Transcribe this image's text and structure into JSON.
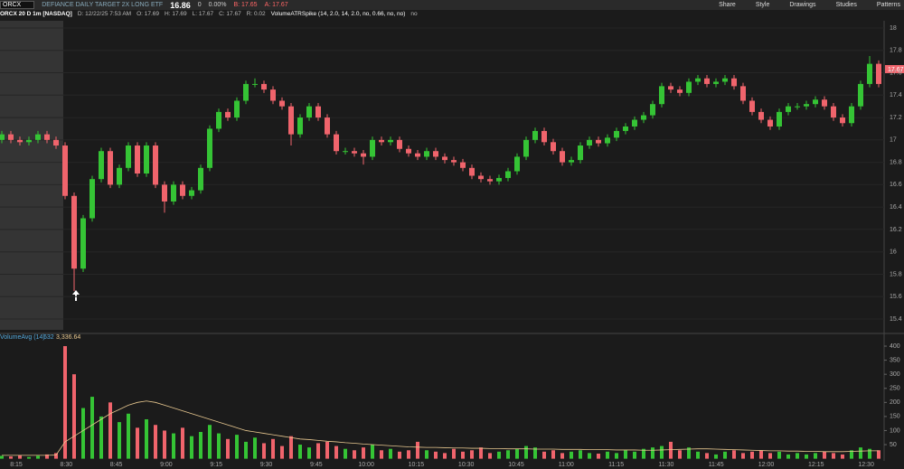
{
  "toolbar": {
    "symbol": "ORCX",
    "description": "DEFIANCE DAILY TARGET 2X LONG ETF",
    "last": "16.86",
    "change": "0",
    "change_pct": "0.00%",
    "bid": "B: 17.65",
    "ask": "A: 17.67",
    "buttons": [
      "Share",
      "Style",
      "Drawings",
      "Studies",
      "Patterns"
    ]
  },
  "legend": {
    "instrument": "ORCX 20 D 1m [NASDAQ]",
    "fields": [
      "D: 12/22/25 7:53 AM",
      "O: 17.69",
      "H: 17.69",
      "L: 17.67",
      "C: 17.67",
      "R: 0.02"
    ],
    "study": "VolumeATRSpike (14, 2.0, 14, 2.0, no, 0.66, no, no)",
    "study_flag": "no",
    "price_tag": "17.67"
  },
  "chart_data": [
    {
      "type": "candlestick",
      "up_color": "#35c435",
      "down_color": "#f0646c",
      "ylim": [
        15.3,
        18.1
      ],
      "yticks": [
        15.4,
        15.6,
        15.8,
        16,
        16.2,
        16.4,
        16.6,
        16.8,
        17,
        17.2,
        17.4,
        17.6,
        17.8,
        18
      ],
      "candles": [
        [
          17.0,
          17.08,
          16.97,
          17.05
        ],
        [
          17.05,
          17.08,
          16.97,
          17.0
        ],
        [
          17.0,
          17.03,
          16.95,
          16.98
        ],
        [
          16.98,
          17.03,
          16.95,
          17.0
        ],
        [
          17.0,
          17.08,
          16.97,
          17.05
        ],
        [
          17.05,
          17.08,
          16.97,
          17.0
        ],
        [
          17.0,
          17.03,
          16.92,
          16.95
        ],
        [
          16.95,
          16.98,
          16.47,
          16.5
        ],
        [
          16.5,
          16.53,
          15.65,
          15.85
        ],
        [
          15.85,
          16.33,
          15.82,
          16.3
        ],
        [
          16.3,
          16.68,
          16.27,
          16.65
        ],
        [
          16.65,
          16.93,
          16.62,
          16.9
        ],
        [
          16.9,
          16.93,
          16.57,
          16.6
        ],
        [
          16.6,
          16.78,
          16.57,
          16.75
        ],
        [
          16.75,
          16.98,
          16.72,
          16.95
        ],
        [
          16.95,
          16.98,
          16.67,
          16.7
        ],
        [
          16.7,
          16.98,
          16.67,
          16.95
        ],
        [
          16.95,
          16.98,
          16.57,
          16.6
        ],
        [
          16.6,
          16.63,
          16.35,
          16.45
        ],
        [
          16.45,
          16.63,
          16.42,
          16.6
        ],
        [
          16.6,
          16.63,
          16.47,
          16.5
        ],
        [
          16.5,
          16.58,
          16.47,
          16.55
        ],
        [
          16.55,
          16.78,
          16.52,
          16.75
        ],
        [
          16.75,
          17.13,
          16.72,
          17.1
        ],
        [
          17.1,
          17.28,
          17.07,
          17.25
        ],
        [
          17.25,
          17.28,
          17.17,
          17.2
        ],
        [
          17.2,
          17.38,
          17.17,
          17.35
        ],
        [
          17.35,
          17.53,
          17.32,
          17.5
        ],
        [
          17.5,
          17.55,
          17.47,
          17.5
        ],
        [
          17.5,
          17.53,
          17.42,
          17.45
        ],
        [
          17.45,
          17.48,
          17.32,
          17.35
        ],
        [
          17.35,
          17.38,
          17.27,
          17.3
        ],
        [
          17.3,
          17.33,
          16.95,
          17.05
        ],
        [
          17.05,
          17.23,
          17.02,
          17.2
        ],
        [
          17.2,
          17.33,
          17.17,
          17.3
        ],
        [
          17.3,
          17.33,
          17.17,
          17.2
        ],
        [
          17.2,
          17.23,
          17.02,
          17.05
        ],
        [
          17.05,
          17.08,
          16.87,
          16.9
        ],
        [
          16.9,
          16.93,
          16.87,
          16.9
        ],
        [
          16.9,
          16.93,
          16.85,
          16.88
        ],
        [
          16.88,
          16.91,
          16.78,
          16.85
        ],
        [
          16.85,
          17.03,
          16.82,
          17.0
        ],
        [
          17.0,
          17.03,
          16.95,
          16.98
        ],
        [
          16.98,
          17.03,
          16.95,
          17.0
        ],
        [
          17.0,
          17.03,
          16.89,
          16.92
        ],
        [
          16.92,
          16.95,
          16.85,
          16.88
        ],
        [
          16.88,
          16.91,
          16.82,
          16.85
        ],
        [
          16.85,
          16.93,
          16.82,
          16.9
        ],
        [
          16.9,
          16.93,
          16.82,
          16.85
        ],
        [
          16.85,
          16.88,
          16.79,
          16.82
        ],
        [
          16.82,
          16.85,
          16.77,
          16.8
        ],
        [
          16.8,
          16.83,
          16.72,
          16.75
        ],
        [
          16.75,
          16.78,
          16.65,
          16.68
        ],
        [
          16.68,
          16.71,
          16.62,
          16.65
        ],
        [
          16.65,
          16.68,
          16.6,
          16.63
        ],
        [
          16.63,
          16.69,
          16.6,
          16.66
        ],
        [
          16.66,
          16.75,
          16.63,
          16.72
        ],
        [
          16.72,
          16.88,
          16.69,
          16.85
        ],
        [
          16.85,
          17.03,
          16.82,
          17.0
        ],
        [
          17.0,
          17.11,
          16.97,
          17.08
        ],
        [
          17.08,
          17.11,
          16.95,
          16.98
        ],
        [
          16.98,
          17.01,
          16.87,
          16.9
        ],
        [
          16.9,
          16.93,
          16.77,
          16.8
        ],
        [
          16.8,
          16.85,
          16.77,
          16.82
        ],
        [
          16.82,
          16.98,
          16.79,
          16.95
        ],
        [
          16.95,
          17.03,
          16.92,
          17.0
        ],
        [
          17.0,
          17.03,
          16.94,
          16.97
        ],
        [
          16.97,
          17.05,
          16.94,
          17.02
        ],
        [
          17.02,
          17.11,
          16.99,
          17.08
        ],
        [
          17.08,
          17.15,
          17.05,
          17.12
        ],
        [
          17.12,
          17.21,
          17.09,
          17.18
        ],
        [
          17.18,
          17.25,
          17.15,
          17.22
        ],
        [
          17.22,
          17.35,
          17.19,
          17.32
        ],
        [
          17.32,
          17.51,
          17.29,
          17.48
        ],
        [
          17.48,
          17.51,
          17.42,
          17.45
        ],
        [
          17.45,
          17.48,
          17.39,
          17.42
        ],
        [
          17.42,
          17.55,
          17.39,
          17.52
        ],
        [
          17.52,
          17.58,
          17.49,
          17.55
        ],
        [
          17.55,
          17.58,
          17.47,
          17.5
        ],
        [
          17.5,
          17.55,
          17.47,
          17.52
        ],
        [
          17.52,
          17.58,
          17.49,
          17.55
        ],
        [
          17.55,
          17.58,
          17.45,
          17.48
        ],
        [
          17.48,
          17.51,
          17.32,
          17.35
        ],
        [
          17.35,
          17.38,
          17.22,
          17.25
        ],
        [
          17.25,
          17.28,
          17.15,
          17.18
        ],
        [
          17.18,
          17.21,
          17.09,
          17.12
        ],
        [
          17.12,
          17.28,
          17.09,
          17.25
        ],
        [
          17.25,
          17.33,
          17.22,
          17.3
        ],
        [
          17.3,
          17.33,
          17.27,
          17.3
        ],
        [
          17.3,
          17.35,
          17.27,
          17.32
        ],
        [
          17.32,
          17.39,
          17.29,
          17.36
        ],
        [
          17.36,
          17.39,
          17.27,
          17.3
        ],
        [
          17.3,
          17.33,
          17.17,
          17.2
        ],
        [
          17.2,
          17.23,
          17.12,
          17.15
        ],
        [
          17.15,
          17.33,
          17.12,
          17.3
        ],
        [
          17.3,
          17.53,
          17.27,
          17.5
        ],
        [
          17.5,
          17.75,
          17.47,
          17.68
        ],
        [
          17.68,
          17.71,
          17.47,
          17.5
        ]
      ]
    },
    {
      "type": "volume",
      "title": "VolumeAvg (14)",
      "current": "632",
      "average": "3,336.64",
      "avg_color": "#e8c890",
      "ylim": [
        0,
        420
      ],
      "yticks": [
        50,
        100,
        150,
        200,
        250,
        300,
        350,
        400
      ],
      "xlabels": [
        "8:15",
        "8:30",
        "8:45",
        "9:00",
        "9:15",
        "9:30",
        "9:45",
        "10:00",
        "10:15",
        "10:30",
        "10:45",
        "11:00",
        "11:15",
        "11:30",
        "11:45",
        "12:00",
        "12:15",
        "12:30"
      ],
      "values": [
        10,
        8,
        12,
        6,
        10,
        15,
        20,
        400,
        300,
        180,
        220,
        150,
        200,
        130,
        160,
        110,
        140,
        120,
        100,
        90,
        110,
        80,
        95,
        120,
        90,
        70,
        85,
        60,
        75,
        55,
        70,
        45,
        80,
        50,
        40,
        55,
        60,
        45,
        35,
        30,
        40,
        50,
        30,
        35,
        25,
        30,
        60,
        30,
        25,
        20,
        35,
        25,
        30,
        40,
        20,
        25,
        30,
        35,
        45,
        40,
        25,
        30,
        20,
        25,
        30,
        20,
        18,
        25,
        20,
        30,
        25,
        35,
        40,
        45,
        60,
        30,
        40,
        25,
        20,
        15,
        25,
        30,
        20,
        25,
        30,
        20,
        25,
        15,
        20,
        15,
        20,
        25,
        20,
        15,
        30,
        40,
        35,
        30
      ],
      "avg": [
        12,
        12,
        12,
        12,
        12,
        12,
        13,
        60,
        80,
        100,
        120,
        140,
        160,
        175,
        190,
        200,
        205,
        200,
        190,
        180,
        170,
        160,
        150,
        140,
        130,
        120,
        110,
        100,
        95,
        90,
        85,
        80,
        75,
        70,
        68,
        65,
        62,
        60,
        57,
        55,
        52,
        50,
        48,
        46,
        44,
        42,
        41,
        40,
        40,
        39,
        38,
        38,
        37,
        37,
        36,
        36,
        35,
        35,
        35,
        34,
        34,
        34,
        33,
        33,
        33,
        32,
        32,
        32,
        31,
        31,
        31,
        30,
        30,
        31,
        32,
        33,
        34,
        35,
        35,
        34,
        33,
        32,
        31,
        30,
        29,
        28,
        28,
        27,
        27,
        26,
        26,
        25,
        25,
        25,
        26,
        27,
        28,
        28
      ]
    }
  ]
}
